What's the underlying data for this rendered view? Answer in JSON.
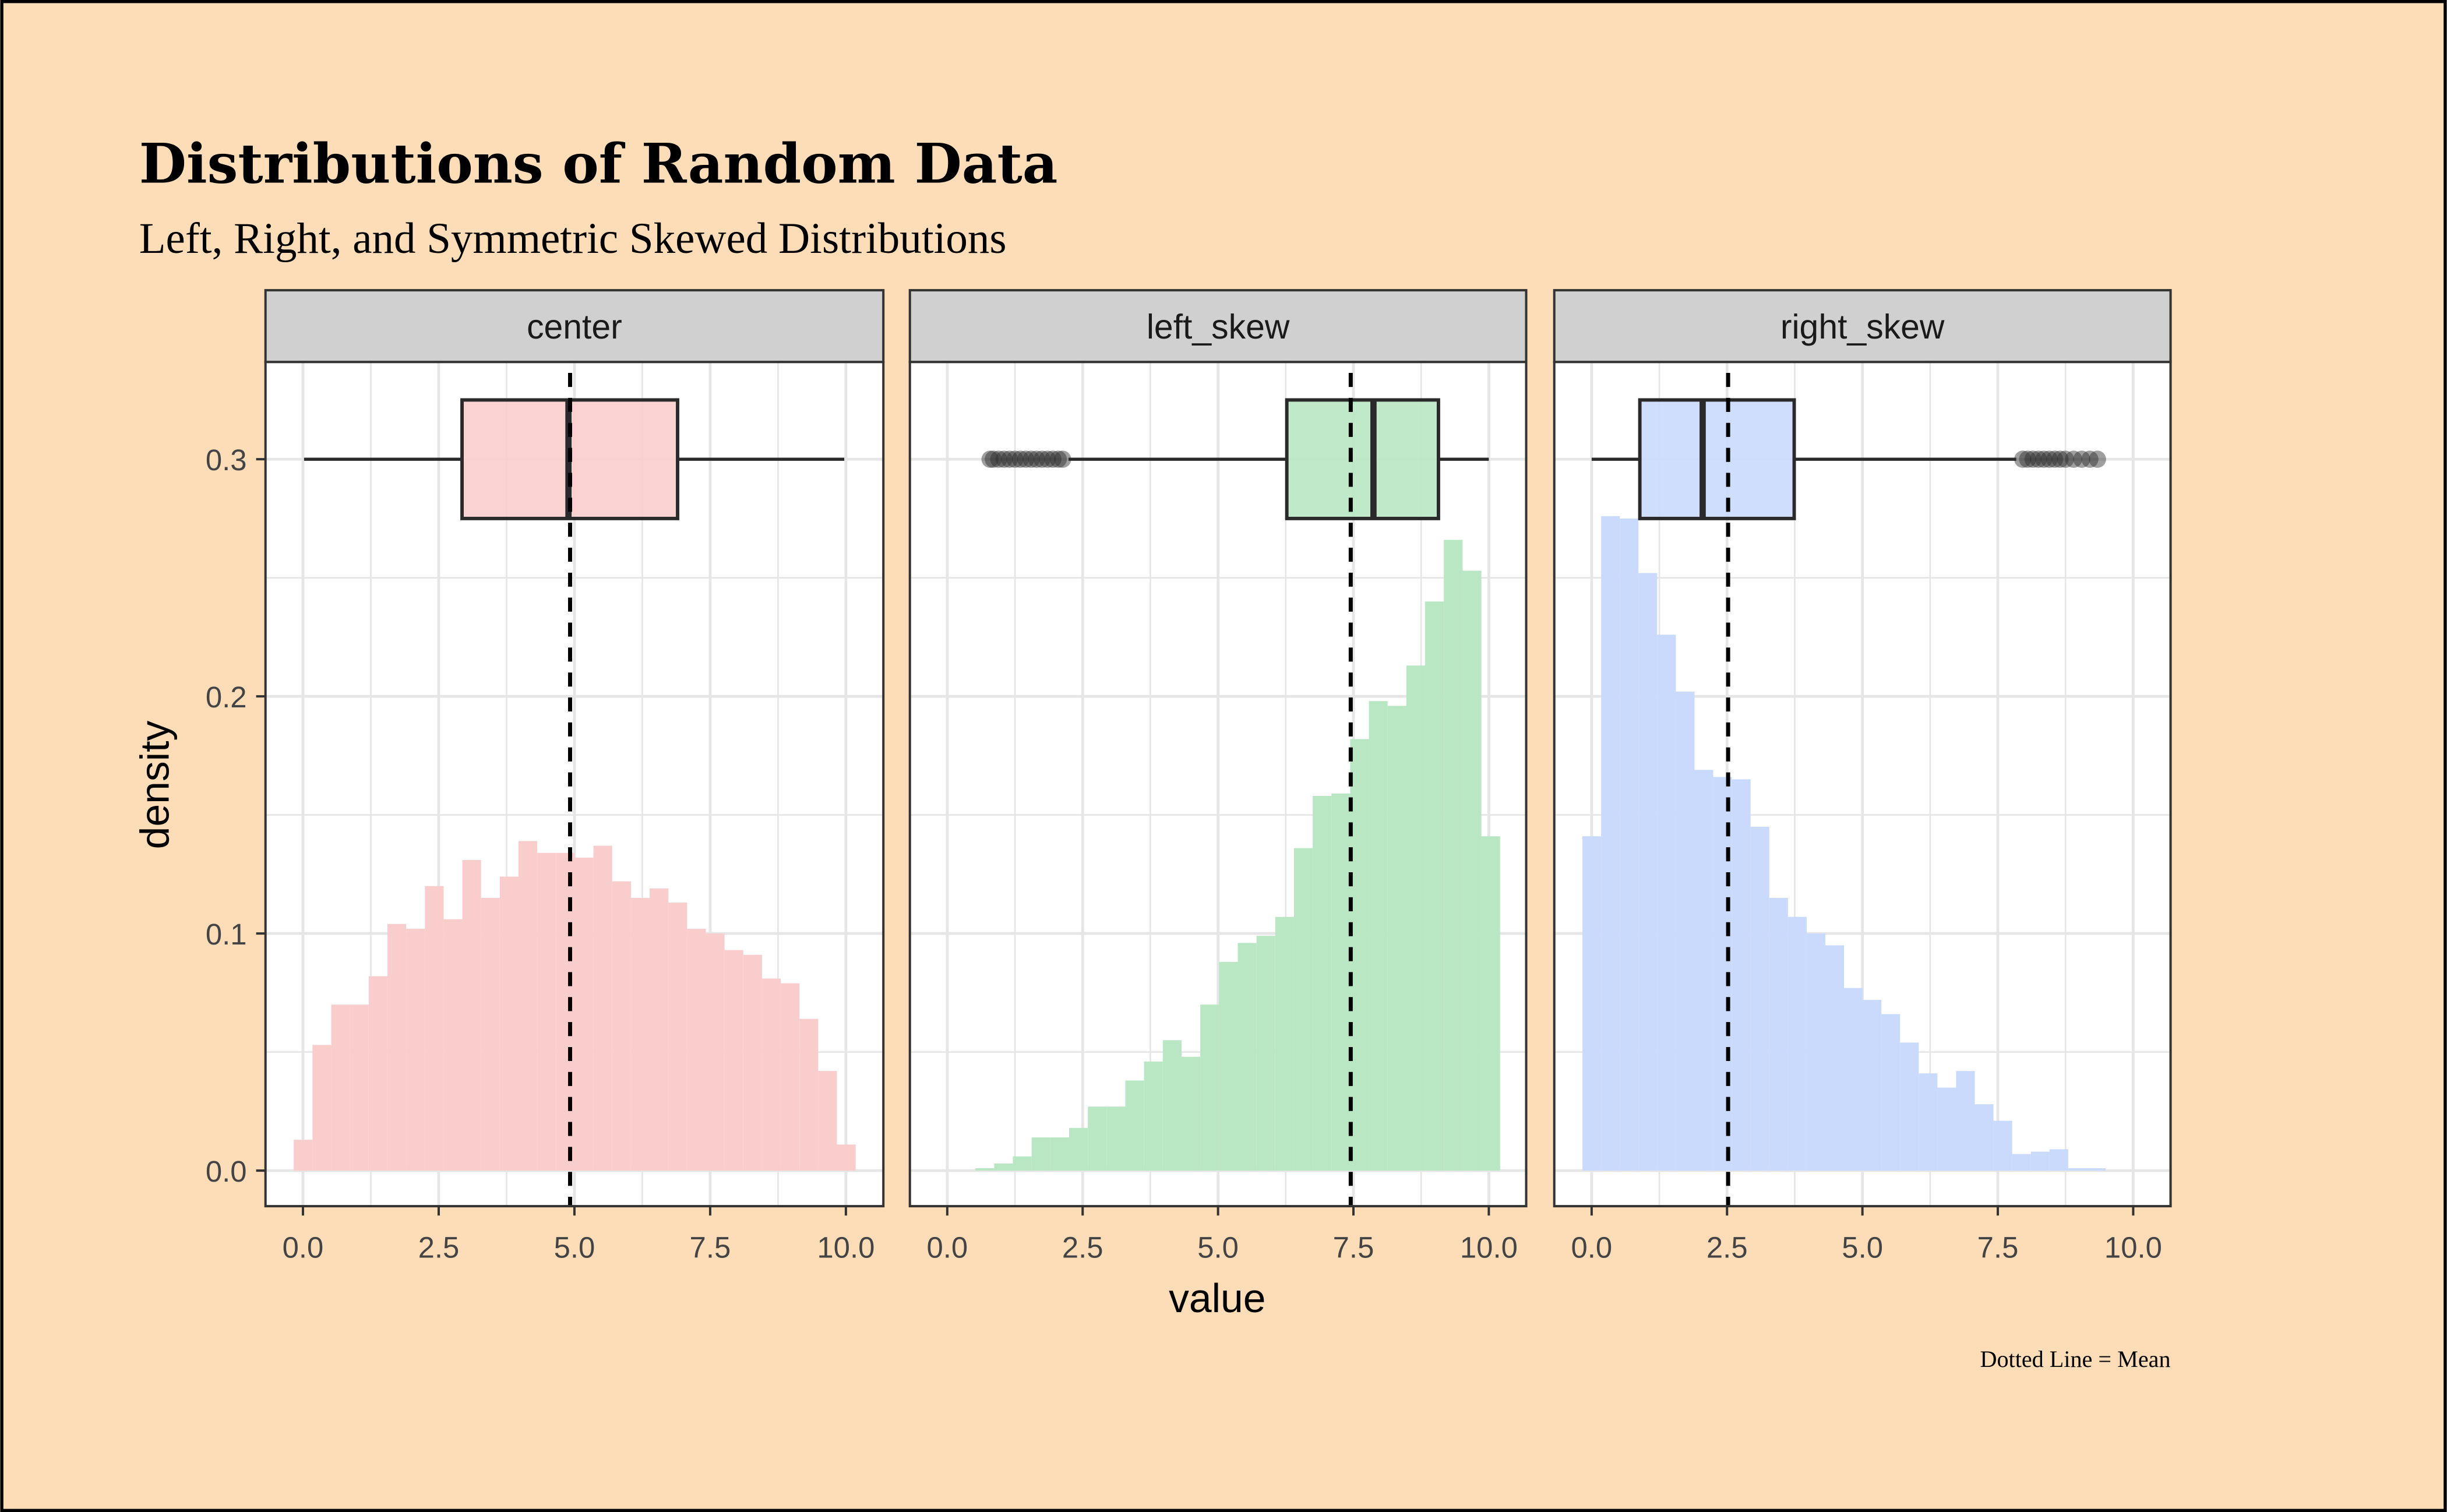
{
  "chart_data": {
    "type": "histogram-boxplot-facets",
    "title": "Distributions of Random Data",
    "subtitle": "Left, Right, and Symmetric Skewed Distributions",
    "caption": "Dotted Line = Mean",
    "xlabel": "value",
    "ylabel": "density",
    "xlim": [
      -0.69,
      10.69
    ],
    "ylim": [
      -0.015,
      0.341
    ],
    "x_ticks": [
      "0.0",
      "2.5",
      "5.0",
      "7.5",
      "10.0"
    ],
    "x_tick_values": [
      0,
      2.5,
      5,
      7.5,
      10
    ],
    "y_ticks": [
      "0.0",
      "0.1",
      "0.2",
      "0.3"
    ],
    "y_tick_values": [
      0,
      0.1,
      0.2,
      0.3
    ],
    "grid": true,
    "boxplot_y": [
      0.275,
      0.325
    ],
    "panels": [
      {
        "name": "center",
        "color": "#FACDCD",
        "bin_start": -0.17,
        "bin_width": 0.345,
        "density": [
          0.013,
          0.053,
          0.07,
          0.07,
          0.082,
          0.104,
          0.102,
          0.12,
          0.106,
          0.131,
          0.115,
          0.124,
          0.139,
          0.134,
          0.134,
          0.132,
          0.137,
          0.122,
          0.115,
          0.119,
          0.113,
          0.102,
          0.1,
          0.093,
          0.091,
          0.081,
          0.079,
          0.064,
          0.042,
          0.011
        ],
        "mean": 4.92,
        "box": {
          "whisker_low": 0.02,
          "q1": 2.93,
          "median": 4.89,
          "q3": 6.9,
          "whisker_high": 9.97
        },
        "outliers": []
      },
      {
        "name": "left_skew",
        "color": "#B9E7C3",
        "bin_start": 0.52,
        "bin_width": 0.346,
        "density": [
          0.001,
          0.003,
          0.006,
          0.014,
          0.014,
          0.018,
          0.027,
          0.027,
          0.038,
          0.046,
          0.055,
          0.048,
          0.07,
          0.088,
          0.096,
          0.099,
          0.107,
          0.136,
          0.158,
          0.159,
          0.182,
          0.198,
          0.196,
          0.213,
          0.24,
          0.266,
          0.253,
          0.141
        ],
        "mean": 7.45,
        "box": {
          "whisker_low": 2.24,
          "q1": 6.27,
          "median": 7.87,
          "q3": 9.07,
          "whisker_high": 10.0
        },
        "outliers": [
          0.79,
          0.85,
          0.95,
          1.05,
          1.15,
          1.25,
          1.35,
          1.45,
          1.55,
          1.65,
          1.75,
          1.85,
          1.95,
          2.05,
          2.13
        ]
      },
      {
        "name": "right_skew",
        "color": "#CADAFC",
        "bin_start": -0.17,
        "bin_width": 0.345,
        "density": [
          0.141,
          0.276,
          0.275,
          0.252,
          0.226,
          0.202,
          0.169,
          0.166,
          0.165,
          0.145,
          0.115,
          0.107,
          0.1,
          0.095,
          0.077,
          0.072,
          0.066,
          0.054,
          0.041,
          0.035,
          0.042,
          0.028,
          0.021,
          0.007,
          0.008,
          0.009,
          0.001,
          0.001
        ],
        "mean": 2.52,
        "box": {
          "whisker_low": 0.0,
          "q1": 0.89,
          "median": 2.05,
          "q3": 3.74,
          "whisker_high": 7.84
        },
        "outliers": [
          7.96,
          8.05,
          8.15,
          8.25,
          8.35,
          8.45,
          8.55,
          8.65,
          8.75,
          8.9,
          9.05,
          9.2,
          9.34
        ]
      }
    ]
  }
}
